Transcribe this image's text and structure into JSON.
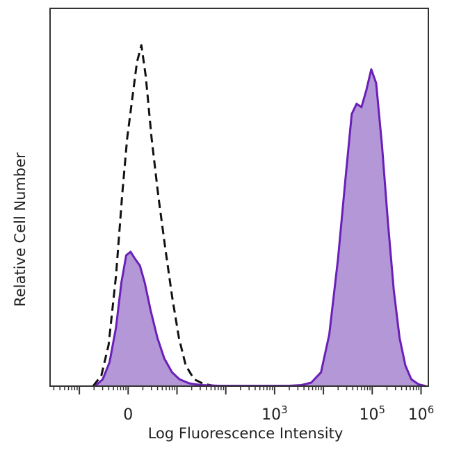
{
  "chart_data": {
    "type": "area",
    "title": "",
    "xlabel": "Log Fluorescence Intensity",
    "ylabel": "Relative Cell Number",
    "x_scale": "biexponential",
    "xlim_decades": [
      -1.6,
      6.15
    ],
    "ylim": [
      0,
      100
    ],
    "grid": false,
    "legend": "none",
    "x_tick_labels": [
      {
        "base": "0",
        "exp": "",
        "decade": 0
      },
      {
        "base": "10",
        "exp": "3",
        "decade": 3
      },
      {
        "base": "10",
        "exp": "5",
        "decade": 5
      },
      {
        "base": "10",
        "exp": "6",
        "decade": 6
      }
    ],
    "colors": {
      "stained_fill": "#b497d6",
      "stained_line": "#6a1fb8",
      "control_line": "#111111",
      "axis": "#333333"
    },
    "series": [
      {
        "style": "dashed",
        "fill": false,
        "points": [
          [
            -0.72,
            0
          ],
          [
            -0.55,
            3
          ],
          [
            -0.4,
            12
          ],
          [
            -0.25,
            32
          ],
          [
            -0.12,
            56
          ],
          [
            -0.02,
            72
          ],
          [
            0.08,
            83
          ],
          [
            0.18,
            94
          ],
          [
            0.27,
            99
          ],
          [
            0.36,
            90
          ],
          [
            0.48,
            72
          ],
          [
            0.62,
            55
          ],
          [
            0.76,
            40
          ],
          [
            0.9,
            26
          ],
          [
            1.04,
            14
          ],
          [
            1.18,
            6
          ],
          [
            1.35,
            2
          ],
          [
            1.55,
            0.6
          ],
          [
            1.8,
            0
          ]
        ]
      },
      {
        "style": "solid",
        "fill": true,
        "points": [
          [
            -0.68,
            0
          ],
          [
            -0.52,
            2
          ],
          [
            -0.38,
            7
          ],
          [
            -0.25,
            17
          ],
          [
            -0.14,
            30
          ],
          [
            -0.04,
            38
          ],
          [
            0.05,
            39
          ],
          [
            0.14,
            37
          ],
          [
            0.24,
            35
          ],
          [
            0.34,
            30
          ],
          [
            0.46,
            22
          ],
          [
            0.6,
            14
          ],
          [
            0.74,
            8
          ],
          [
            0.9,
            4
          ],
          [
            1.05,
            2
          ],
          [
            1.25,
            0.8
          ],
          [
            1.5,
            0.3
          ],
          [
            1.85,
            0.1
          ],
          [
            2.3,
            0.1
          ],
          [
            2.8,
            0.1
          ],
          [
            3.3,
            0.1
          ],
          [
            3.55,
            0.3
          ],
          [
            3.75,
            1
          ],
          [
            3.95,
            4
          ],
          [
            4.12,
            15
          ],
          [
            4.3,
            37
          ],
          [
            4.45,
            60
          ],
          [
            4.58,
            79
          ],
          [
            4.68,
            82
          ],
          [
            4.78,
            81
          ],
          [
            4.88,
            86
          ],
          [
            4.98,
            92
          ],
          [
            5.08,
            88
          ],
          [
            5.2,
            70
          ],
          [
            5.32,
            48
          ],
          [
            5.44,
            28
          ],
          [
            5.56,
            14
          ],
          [
            5.68,
            6
          ],
          [
            5.8,
            2
          ],
          [
            5.95,
            0.5
          ],
          [
            6.1,
            0
          ]
        ]
      }
    ]
  }
}
